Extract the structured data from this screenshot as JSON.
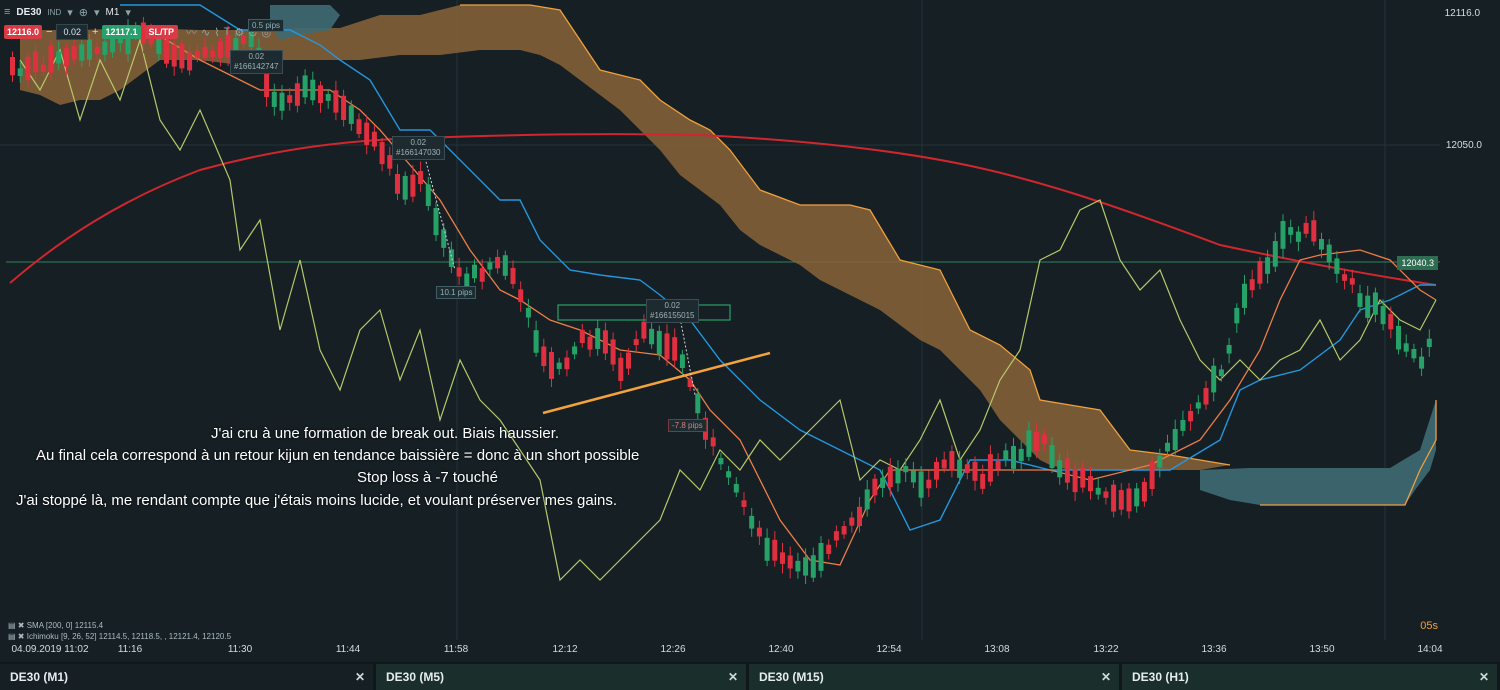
{
  "toolbar": {
    "symbol": "DE30",
    "chart_type": "IND",
    "timeframe": "M1",
    "sell_price": "12116.0",
    "volume": "0.02",
    "buy_price": "12117.1",
    "sltp_label": "SL/TP",
    "minus": "−",
    "plus": "+"
  },
  "price_tags": {
    "top": "12116.0",
    "mid": "12040.3"
  },
  "chart_data": {
    "type": "candlestick",
    "instrument": "DE30",
    "timeframe": "M1",
    "y_ticks": [
      "12116.0",
      "12050.0"
    ],
    "x_ticks": [
      "11:16",
      "11:30",
      "11:44",
      "11:58",
      "12:12",
      "12:26",
      "12:40",
      "12:54",
      "13:08",
      "13:22",
      "13:36",
      "13:50",
      "14:04"
    ],
    "x_start_label": "04.09.2019 11:02",
    "horizontal_line": 12040.3,
    "indicators": [
      {
        "name": "SMA [200, 0]",
        "value": "12115.4",
        "color": "#d0262e"
      },
      {
        "name": "Ichimoku [9, 26, 52]",
        "values": [
          "12114.5",
          "12118.5",
          "",
          "12121.4",
          "12120.5"
        ]
      }
    ],
    "colors": {
      "bull": "#26a269",
      "bear": "#e0303f",
      "kijun": "#ee7d48",
      "tenkan": "#2596dc",
      "chikou": "#b6c86a",
      "cloud_bear": "#8a6438",
      "cloud_bull": "#3e6a73",
      "trend_line": "#f5a23c"
    }
  },
  "order_labels": [
    {
      "qty": "0.02",
      "id": "#166142747"
    },
    {
      "qty": "0.02",
      "id": "#166147030"
    },
    {
      "qty": "0.02",
      "id": "#166155015"
    }
  ],
  "pips": [
    "0.5 pips",
    "10.1 pips",
    "-7.8 pips"
  ],
  "annotation": {
    "line1": "J'ai cru à une formation de break out. Biais haussier.",
    "line2": "Au final cela correspond à un retour kijun en tendance baissière = donc à un short possible",
    "line3": "Stop loss à -7 touché",
    "line4": "J'ai stoppé là, me rendant compte que j'étais moins lucide, et voulant préserver mes gains."
  },
  "legend": {
    "sma": "SMA [200, 0] 12115.4",
    "ichimoku": "Ichimoku [9, 26, 52] 12114.5, 12118.5, , 12121.4, 12120.5"
  },
  "timer": "05s",
  "tabs": [
    {
      "label": "DE30 (M1)"
    },
    {
      "label": "DE30 (M5)"
    },
    {
      "label": "DE30 (M15)"
    },
    {
      "label": "DE30 (H1)"
    }
  ]
}
